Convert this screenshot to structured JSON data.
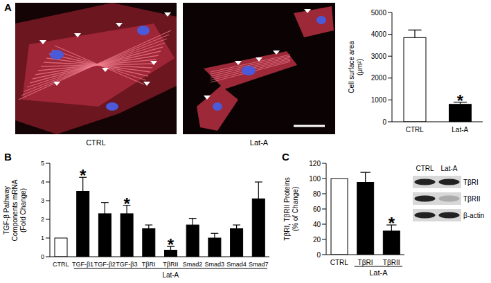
{
  "micrographs": {
    "labels": [
      "CTRL",
      "Lat-A"
    ]
  },
  "chart_data": [
    {
      "panel": "A",
      "type": "bar",
      "y_label": [
        "Cell surface area",
        "(μm²)"
      ],
      "categories": [
        "CTRL",
        "Lat-A"
      ],
      "values": [
        3850,
        800
      ],
      "errors": [
        350,
        100
      ],
      "colors": [
        "#ffffff",
        "#000000"
      ],
      "ylim": [
        0,
        5000
      ],
      "yticks": [
        0,
        1000,
        2000,
        3000,
        4000,
        5000
      ],
      "annotations": [
        {
          "category": "Lat-A",
          "text": "*"
        }
      ],
      "grid": false
    },
    {
      "panel": "B",
      "type": "bar",
      "y_label": [
        "TGF-β Pathway",
        "Components mRNA",
        "(Fold Change)"
      ],
      "categories": [
        "CTRL",
        "TGF-β1",
        "TGF-β2",
        "TGF-β3",
        "TβRI",
        "TβRII",
        "Smad2",
        "Smad3",
        "Smad4",
        "Smad7"
      ],
      "values": [
        1,
        3.5,
        2.3,
        2.3,
        1.5,
        0.35,
        1.7,
        1.0,
        1.5,
        3.1
      ],
      "errors": [
        null,
        0.75,
        0.6,
        0.45,
        0.2,
        0.2,
        0.35,
        0.25,
        0.2,
        0.9
      ],
      "colors": [
        "#ffffff",
        "#000000",
        "#000000",
        "#000000",
        "#000000",
        "#000000",
        "#000000",
        "#000000",
        "#000000",
        "#000000"
      ],
      "ylim": [
        0,
        5
      ],
      "yticks": [
        0,
        1,
        2,
        3,
        4,
        5
      ],
      "annotations": [
        {
          "category": "TGF-β1",
          "text": "*"
        },
        {
          "category": "TGF-β3",
          "text": "*"
        },
        {
          "category": "TβRII",
          "text": "*"
        }
      ],
      "group": {
        "label": "Lat-A",
        "from": "TGF-β1",
        "to": "Smad7"
      },
      "grid": false
    },
    {
      "panel": "C",
      "type": "bar",
      "y_label": [
        "TβRI, TβRII Proteins",
        "(% of Change)"
      ],
      "categories": [
        "CTRL",
        "TβRI",
        "TβRII"
      ],
      "values": [
        100,
        95,
        31
      ],
      "errors": [
        null,
        13,
        8
      ],
      "colors": [
        "#ffffff",
        "#000000",
        "#000000"
      ],
      "ylim": [
        0,
        120
      ],
      "yticks": [
        0,
        20,
        40,
        60,
        80,
        100,
        120
      ],
      "annotations": [
        {
          "category": "TβRII",
          "text": "*"
        }
      ],
      "group": {
        "label": "Lat-A",
        "from": "TβRI",
        "to": "TβRII"
      },
      "grid": false
    }
  ],
  "blot": {
    "columns": [
      "CTRL",
      "Lat-A"
    ],
    "rows": [
      "TβRI",
      "TβRII",
      "β-actin"
    ]
  }
}
